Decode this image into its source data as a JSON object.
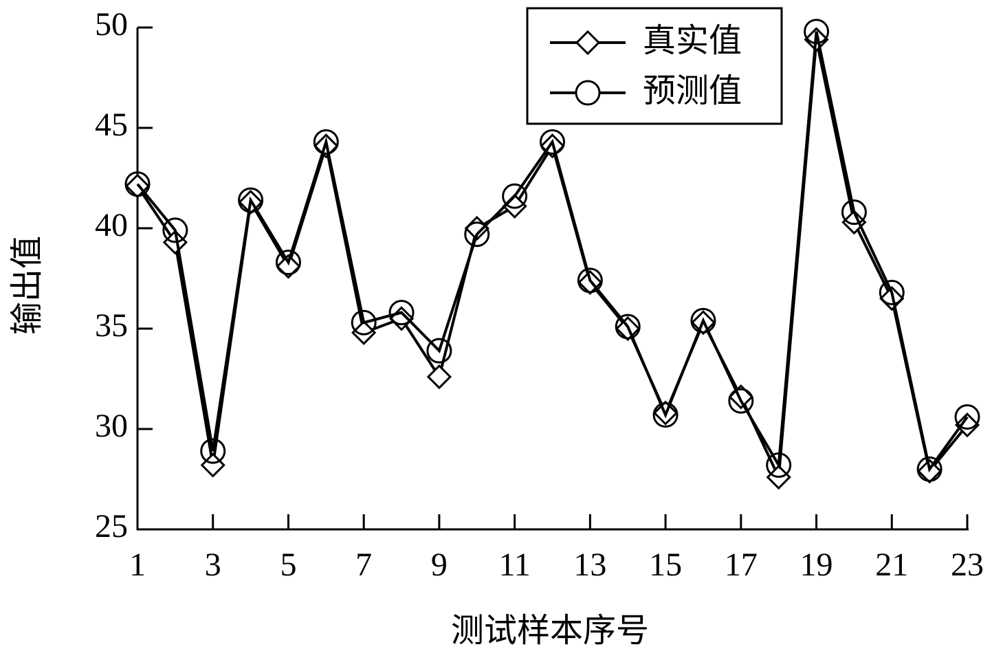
{
  "chart_data": {
    "type": "line",
    "x_label": "测试样本序号",
    "y_label": "输出值",
    "x": [
      1,
      2,
      3,
      4,
      5,
      6,
      7,
      8,
      9,
      10,
      11,
      12,
      13,
      14,
      15,
      16,
      17,
      18,
      19,
      20,
      21,
      22,
      23
    ],
    "series": [
      {
        "name": "真实值",
        "color": "#000000",
        "marker": "diamond",
        "values": [
          42.1,
          39.3,
          28.2,
          41.3,
          38.1,
          44.1,
          34.8,
          35.5,
          32.6,
          40.0,
          41.1,
          44.1,
          37.3,
          35.0,
          30.8,
          35.3,
          31.6,
          27.6,
          49.4,
          40.3,
          36.5,
          27.9,
          30.2
        ]
      },
      {
        "name": "预测值",
        "color": "#000000",
        "marker": "circle",
        "values": [
          42.2,
          39.9,
          28.9,
          41.4,
          38.3,
          44.3,
          35.3,
          35.8,
          33.9,
          39.7,
          41.6,
          44.3,
          37.4,
          35.1,
          30.7,
          35.4,
          31.4,
          28.2,
          49.8,
          40.8,
          36.8,
          28.0,
          30.6
        ]
      }
    ],
    "xlim": [
      1,
      23
    ],
    "xticks": [
      1,
      3,
      5,
      7,
      9,
      11,
      13,
      15,
      17,
      19,
      21,
      23
    ],
    "ylim": [
      25,
      50
    ],
    "yticks": [
      25,
      30,
      35,
      40,
      45,
      50
    ],
    "legend": "upper right"
  }
}
